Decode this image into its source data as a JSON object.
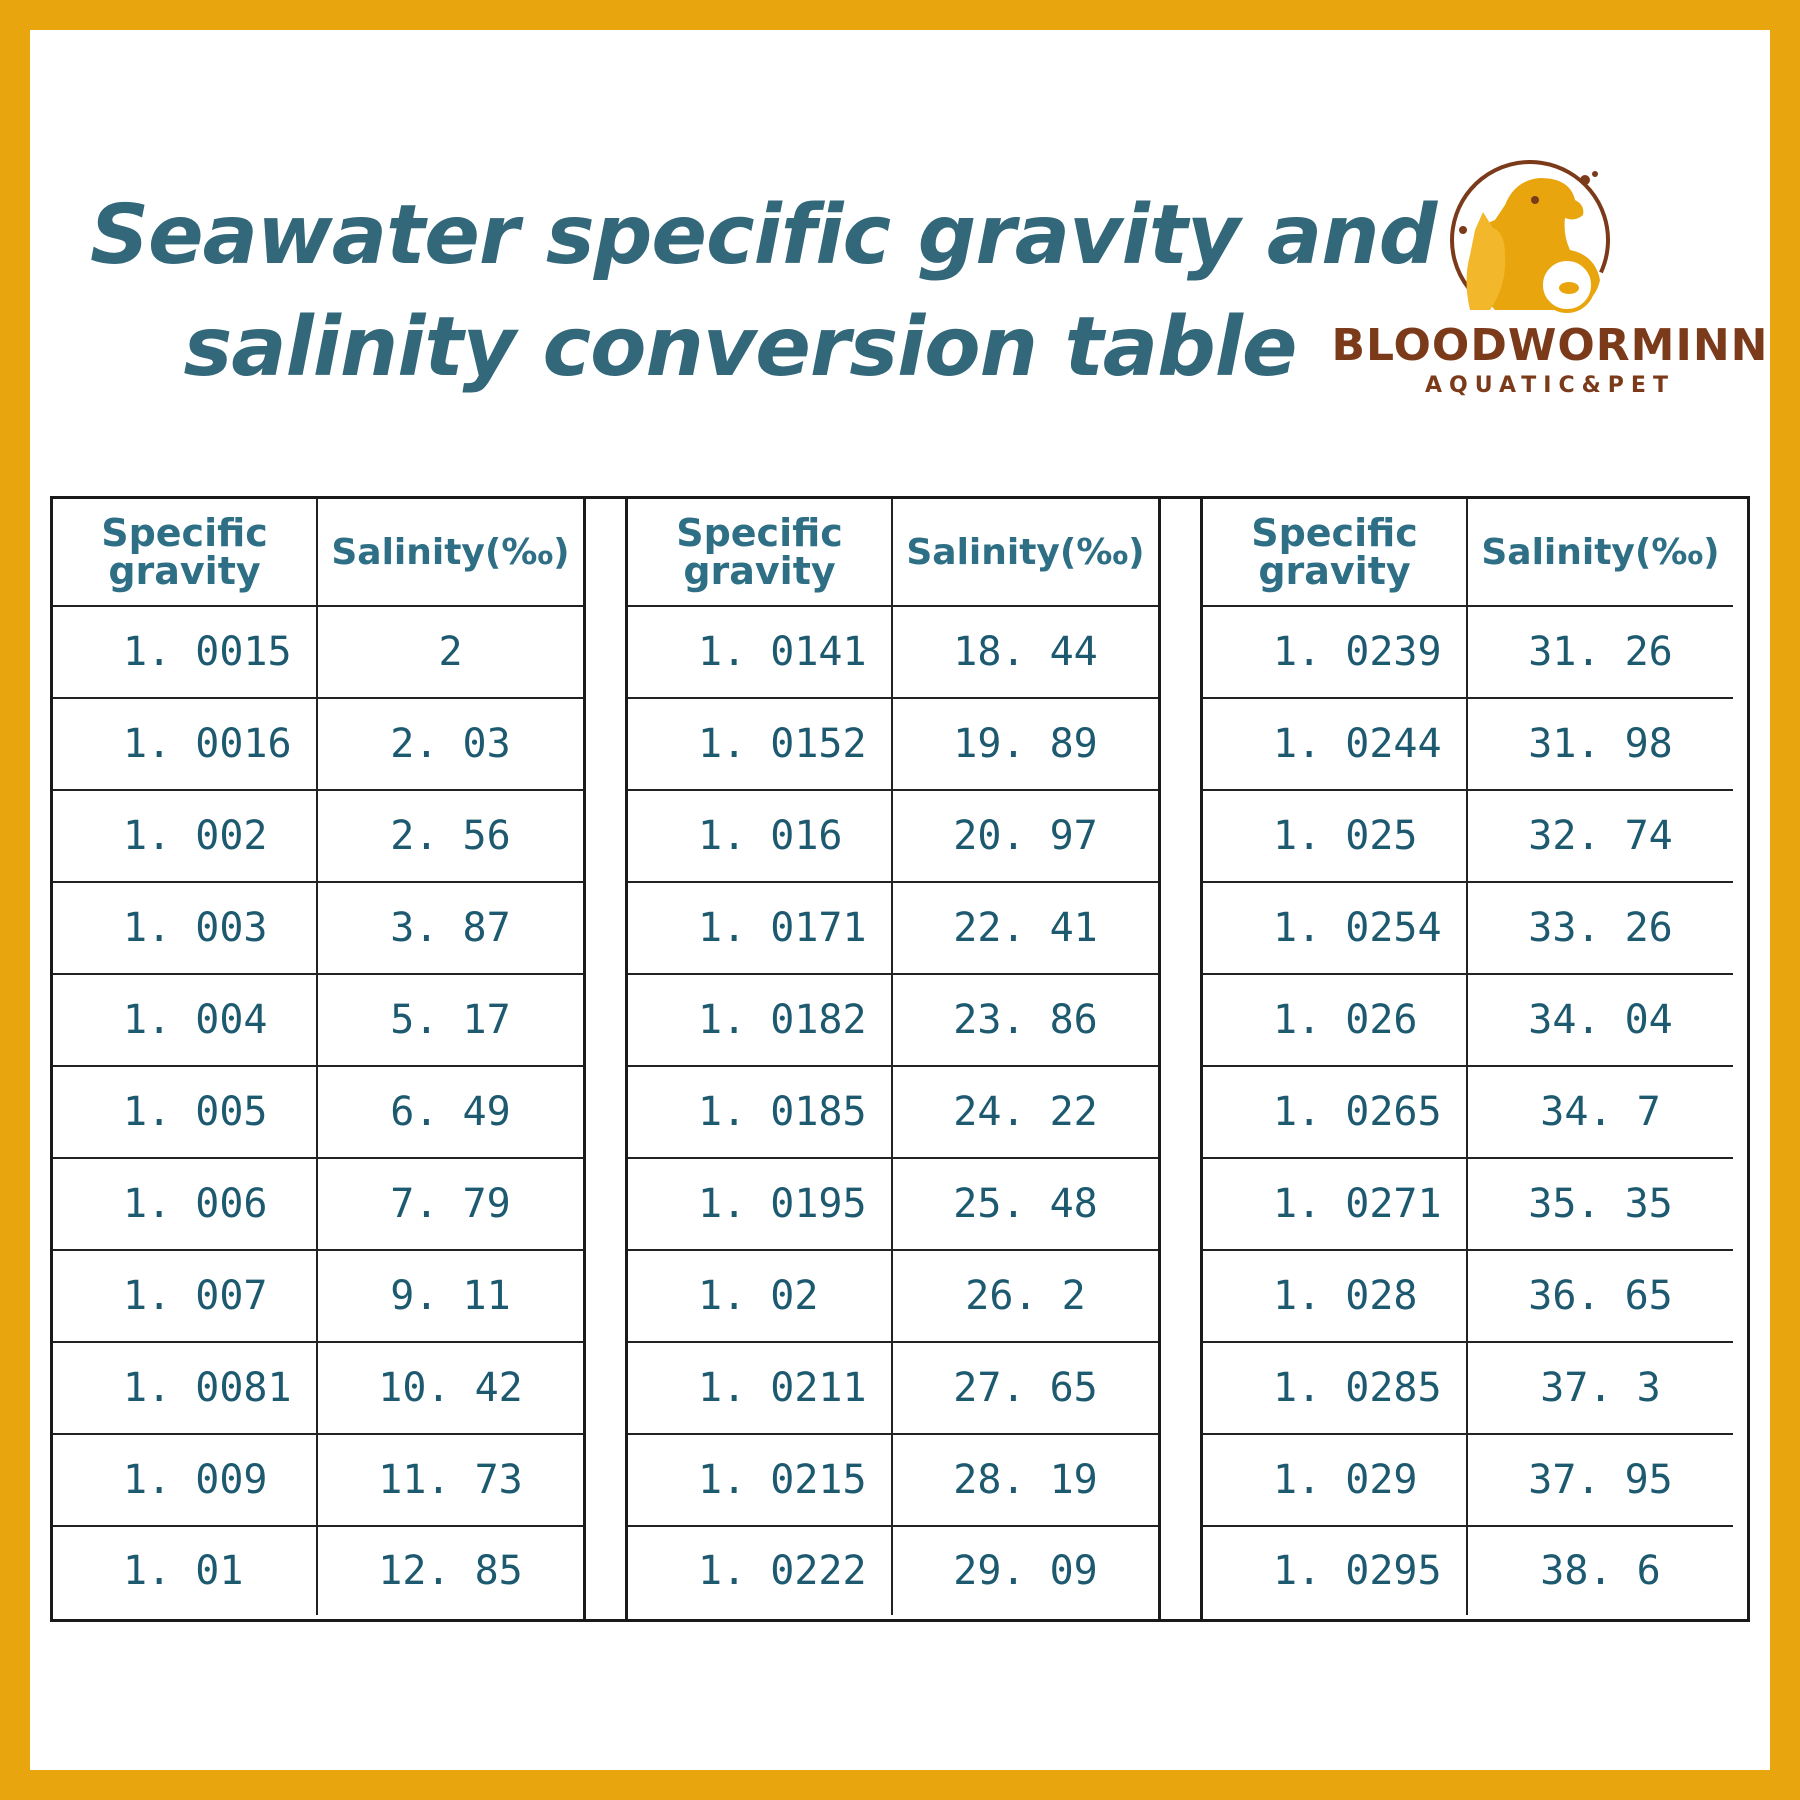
{
  "title": {
    "line1": "Seawater specific gravity and",
    "line2": "salinity conversion table"
  },
  "brand": {
    "name": "BLOODWORMINN",
    "tagline": "AQUATIC&PET",
    "primary_color": "#E8A50D",
    "text_color": "#7B3A1A",
    "icon": "dog-cat-fishbowl-logo-icon"
  },
  "colors": {
    "border": "#E8A50D",
    "title": "#33677A",
    "table_text": "#1D5A70"
  },
  "table": {
    "headers": {
      "specific_gravity": "Specific gravity",
      "salinity": "Salinity(‰)"
    },
    "groups": [
      {
        "rows": [
          {
            "sg": "1. 0015",
            "sal": "2"
          },
          {
            "sg": "1. 0016",
            "sal": "2. 03"
          },
          {
            "sg": "1. 002",
            "sal": "2. 56"
          },
          {
            "sg": "1. 003",
            "sal": "3. 87"
          },
          {
            "sg": "1. 004",
            "sal": "5. 17"
          },
          {
            "sg": "1. 005",
            "sal": "6. 49"
          },
          {
            "sg": "1. 006",
            "sal": "7. 79"
          },
          {
            "sg": "1. 007",
            "sal": "9. 11"
          },
          {
            "sg": "1. 0081",
            "sal": "10. 42"
          },
          {
            "sg": "1. 009",
            "sal": "11. 73"
          },
          {
            "sg": "1. 01",
            "sal": "12. 85"
          }
        ]
      },
      {
        "rows": [
          {
            "sg": "1. 0141",
            "sal": "18. 44"
          },
          {
            "sg": "1. 0152",
            "sal": "19. 89"
          },
          {
            "sg": "1. 016",
            "sal": "20. 97"
          },
          {
            "sg": "1. 0171",
            "sal": "22. 41"
          },
          {
            "sg": "1. 0182",
            "sal": "23. 86"
          },
          {
            "sg": "1. 0185",
            "sal": "24. 22"
          },
          {
            "sg": "1. 0195",
            "sal": "25. 48"
          },
          {
            "sg": "1. 02",
            "sal": "26. 2"
          },
          {
            "sg": "1. 0211",
            "sal": "27. 65"
          },
          {
            "sg": "1. 0215",
            "sal": "28. 19"
          },
          {
            "sg": "1. 0222",
            "sal": "29. 09"
          }
        ]
      },
      {
        "rows": [
          {
            "sg": "1. 0239",
            "sal": "31. 26"
          },
          {
            "sg": "1. 0244",
            "sal": "31. 98"
          },
          {
            "sg": "1. 025",
            "sal": "32. 74"
          },
          {
            "sg": "1. 0254",
            "sal": "33. 26"
          },
          {
            "sg": "1. 026",
            "sal": "34. 04"
          },
          {
            "sg": "1. 0265",
            "sal": "34. 7"
          },
          {
            "sg": "1. 0271",
            "sal": "35. 35"
          },
          {
            "sg": "1. 028",
            "sal": "36. 65"
          },
          {
            "sg": "1. 0285",
            "sal": "37. 3"
          },
          {
            "sg": "1. 029",
            "sal": "37. 95"
          },
          {
            "sg": "1. 0295",
            "sal": "38. 6"
          }
        ]
      }
    ]
  }
}
